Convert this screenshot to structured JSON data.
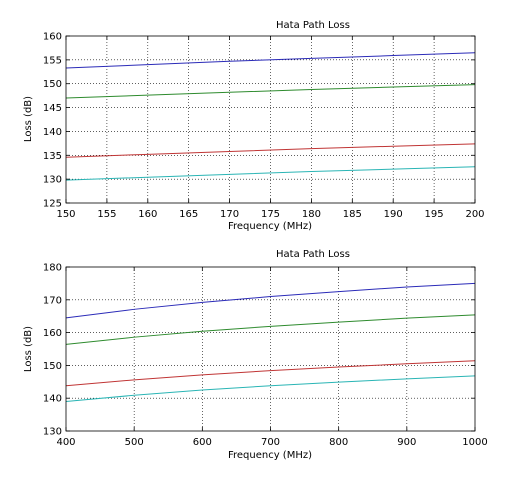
{
  "colors": {
    "blue": "#2b2bb8",
    "green": "#2e8b2e",
    "red": "#c03535",
    "cyan": "#2ab5b5",
    "grid": "#000000",
    "axes": "#000000"
  },
  "chart_data": [
    {
      "type": "line",
      "title": "Hata Path Loss",
      "xlabel": "Frequency (MHz)",
      "ylabel": "Loss (dB)",
      "xlim": [
        150,
        200
      ],
      "ylim": [
        125,
        160
      ],
      "xticks": [
        150,
        155,
        160,
        165,
        170,
        175,
        180,
        185,
        190,
        195,
        200
      ],
      "yticks": [
        125,
        130,
        135,
        140,
        145,
        150,
        155,
        160
      ],
      "grid": true,
      "series": [
        {
          "color": "blue",
          "x": [
            150,
            160,
            170,
            180,
            190,
            200
          ],
          "y": [
            153.3,
            154.0,
            154.7,
            155.3,
            155.9,
            156.5
          ]
        },
        {
          "color": "green",
          "x": [
            150,
            160,
            170,
            180,
            190,
            200
          ],
          "y": [
            147.0,
            147.6,
            148.2,
            148.8,
            149.3,
            149.8
          ]
        },
        {
          "color": "red",
          "x": [
            150,
            160,
            170,
            180,
            190,
            200
          ],
          "y": [
            134.6,
            135.2,
            135.8,
            136.4,
            136.9,
            137.4
          ]
        },
        {
          "color": "cyan",
          "x": [
            150,
            160,
            170,
            180,
            190,
            200
          ],
          "y": [
            129.8,
            130.4,
            131.0,
            131.6,
            132.1,
            132.6
          ]
        }
      ]
    },
    {
      "type": "line",
      "title": "Hata Path Loss",
      "xlabel": "Frequency (MHz)",
      "ylabel": "Loss (dB)",
      "xlim": [
        400,
        1000
      ],
      "ylim": [
        130,
        180
      ],
      "xticks": [
        400,
        500,
        600,
        700,
        800,
        900,
        1000
      ],
      "yticks": [
        130,
        140,
        150,
        160,
        170,
        180
      ],
      "grid": true,
      "series": [
        {
          "color": "blue",
          "x": [
            400,
            500,
            600,
            700,
            800,
            900,
            1000
          ],
          "y": [
            164.5,
            167.1,
            169.2,
            171.0,
            172.5,
            173.9,
            175.0
          ]
        },
        {
          "color": "green",
          "x": [
            400,
            500,
            600,
            700,
            800,
            900,
            1000
          ],
          "y": [
            156.4,
            158.6,
            160.4,
            161.9,
            163.2,
            164.4,
            165.4
          ]
        },
        {
          "color": "red",
          "x": [
            400,
            500,
            600,
            700,
            800,
            900,
            1000
          ],
          "y": [
            143.8,
            145.6,
            147.1,
            148.4,
            149.5,
            150.5,
            151.4
          ]
        },
        {
          "color": "cyan",
          "x": [
            400,
            500,
            600,
            700,
            800,
            900,
            1000
          ],
          "y": [
            139.0,
            140.9,
            142.5,
            143.8,
            144.9,
            145.9,
            146.8
          ]
        }
      ]
    }
  ]
}
